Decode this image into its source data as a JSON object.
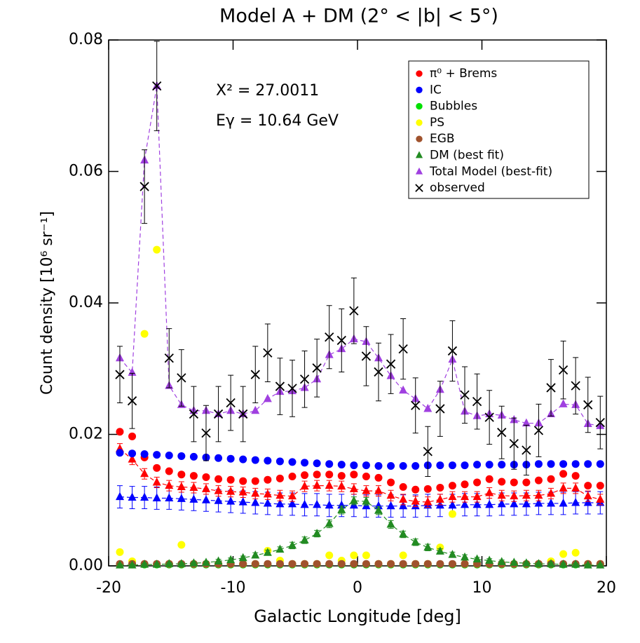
{
  "chart_data": {
    "type": "scatter",
    "title": "Model A + DM (2° < |b| < 5°)",
    "xlabel": "Galactic Longitude [deg]",
    "ylabel": "Count density  [10⁶ sr⁻¹]",
    "annotations": [
      "Χ² = 27.0011",
      "Eγ = 10.64 GeV"
    ],
    "xlim": [
      -20,
      20
    ],
    "xticks": [
      -20,
      -10,
      0,
      10,
      20
    ],
    "ylim": [
      0,
      0.08
    ],
    "yticks": [
      {
        "value": 0,
        "label": "0.00"
      },
      {
        "value": 0.02,
        "label": "0.02"
      },
      {
        "value": 0.04,
        "label": "0.04"
      },
      {
        "value": 0.06,
        "label": "0.06"
      },
      {
        "value": 0.08,
        "label": "0.08"
      }
    ],
    "legend": "upper right",
    "x": [
      -19.1,
      -18.11,
      -17.12,
      -16.13,
      -15.14,
      -14.15,
      -13.16,
      -12.17,
      -11.18,
      -10.19,
      -9.2,
      -8.21,
      -7.22,
      -6.23,
      -5.24,
      -4.25,
      -3.26,
      -2.27,
      -1.28,
      -0.29,
      0.7,
      1.69,
      2.68,
      3.67,
      4.66,
      5.65,
      6.64,
      7.63,
      8.62,
      9.61,
      10.6,
      11.59,
      12.58,
      13.57,
      14.56,
      15.55,
      16.54,
      17.53,
      18.52,
      19.51
    ],
    "series": [
      {
        "color": "#0000ff",
        "marker": "triangle",
        "line": "dashed",
        "values": [
          0.0105,
          0.0104,
          0.0104,
          0.0103,
          0.0103,
          0.0102,
          0.0101,
          0.01,
          0.0099,
          0.0098,
          0.0097,
          0.0096,
          0.0095,
          0.0094,
          0.0094,
          0.0093,
          0.0093,
          0.0092,
          0.0092,
          0.0092,
          0.0091,
          0.0091,
          0.0091,
          0.0091,
          0.0091,
          0.0092,
          0.0092,
          0.0092,
          0.0093,
          0.0093,
          0.0093,
          0.0094,
          0.0094,
          0.0094,
          0.0095,
          0.0095,
          0.0095,
          0.0096,
          0.0096,
          0.0096
        ],
        "errors": [
          0.0017,
          0.0017,
          0.0017,
          0.0017,
          0.0017,
          0.0017,
          0.0017,
          0.0017,
          0.0017,
          0.0017,
          0.0017,
          0.0017,
          0.0017,
          0.0017,
          0.0017,
          0.0017,
          0.0017,
          0.0017,
          0.0017,
          0.0017,
          0.0017,
          0.0017,
          0.0017,
          0.0017,
          0.0017,
          0.0017,
          0.0017,
          0.0017,
          0.0017,
          0.0017,
          0.0017,
          0.0017,
          0.0017,
          0.0017,
          0.0017,
          0.0017,
          0.0017,
          0.0017,
          0.0017,
          0.0017
        ]
      },
      {
        "color": "#ff0000",
        "marker": "triangle",
        "line": "dashed",
        "values": [
          0.0178,
          0.0162,
          0.014,
          0.0127,
          0.0122,
          0.012,
          0.0119,
          0.0117,
          0.0114,
          0.0113,
          0.0112,
          0.011,
          0.0109,
          0.0107,
          0.0106,
          0.0121,
          0.0122,
          0.0122,
          0.0121,
          0.0117,
          0.0114,
          0.0114,
          0.0107,
          0.0101,
          0.0098,
          0.0097,
          0.0101,
          0.0105,
          0.0105,
          0.0105,
          0.0111,
          0.0107,
          0.0106,
          0.0107,
          0.0107,
          0.011,
          0.0118,
          0.0118,
          0.0106,
          0.0101
        ],
        "errors": [
          0.0008,
          0.0008,
          0.0008,
          0.0008,
          0.0008,
          0.0008,
          0.0008,
          0.0008,
          0.0008,
          0.0008,
          0.0008,
          0.0008,
          0.0008,
          0.0008,
          0.0008,
          0.0008,
          0.0008,
          0.0008,
          0.0008,
          0.0008,
          0.0008,
          0.0008,
          0.0008,
          0.0008,
          0.0008,
          0.0008,
          0.0008,
          0.0008,
          0.0008,
          0.0008,
          0.0008,
          0.0008,
          0.0008,
          0.0008,
          0.0008,
          0.0008,
          0.0008,
          0.0008,
          0.0008,
          0.0008
        ]
      },
      {
        "name": "π⁰ + Brems",
        "color": "#ff0000",
        "marker": "circle",
        "values": [
          0.0204,
          0.0197,
          0.0165,
          0.0149,
          0.0144,
          0.0139,
          0.0137,
          0.0135,
          0.0132,
          0.0131,
          0.0129,
          0.0129,
          0.0131,
          0.0133,
          0.0136,
          0.0138,
          0.0139,
          0.0139,
          0.0137,
          0.0139,
          0.0136,
          0.0134,
          0.0127,
          0.012,
          0.0116,
          0.0117,
          0.0119,
          0.0122,
          0.0124,
          0.0127,
          0.0132,
          0.0128,
          0.0127,
          0.0127,
          0.013,
          0.0132,
          0.014,
          0.0137,
          0.0122,
          0.0122
        ]
      },
      {
        "name": "IC",
        "color": "#0000ff",
        "marker": "circle",
        "values": [
          0.0172,
          0.0171,
          0.017,
          0.0169,
          0.0168,
          0.0167,
          0.0166,
          0.0165,
          0.0164,
          0.0163,
          0.0162,
          0.0161,
          0.016,
          0.0159,
          0.0158,
          0.0157,
          0.0156,
          0.0155,
          0.0154,
          0.0153,
          0.0153,
          0.0152,
          0.0152,
          0.0152,
          0.0152,
          0.0153,
          0.0153,
          0.0153,
          0.0153,
          0.0154,
          0.0154,
          0.0154,
          0.0154,
          0.0154,
          0.0155,
          0.0155,
          0.0155,
          0.0155,
          0.0155,
          0.0155
        ]
      },
      {
        "name": "Bubbles",
        "color": "#00e000",
        "marker": "circle",
        "values": [
          0.0002,
          0.0002,
          0.0002,
          0.0002,
          0.0002,
          0.0002,
          0.0002,
          0.0002,
          0.0002,
          0.0002,
          0.0002,
          0.0002,
          0.0002,
          0.0002,
          0.0002,
          0.0002,
          0.0002,
          0.0002,
          0.0002,
          0.0002,
          0.0002,
          0.0002,
          0.0002,
          0.0002,
          0.0002,
          0.0002,
          0.0002,
          0.0002,
          0.0002,
          0.0002,
          0.0002,
          0.0002,
          0.0002,
          0.0002,
          0.0002,
          0.0002,
          0.0002,
          0.0002,
          0.0002,
          0.0002
        ]
      },
      {
        "name": "PS",
        "color": "#ffff00",
        "marker": "circle",
        "values": [
          0.0021,
          0.0007,
          0.0353,
          0.0481,
          0.0003,
          0.0032,
          0.0003,
          0.0003,
          0.0003,
          0.0003,
          0.0003,
          0.0003,
          0.0023,
          0.0008,
          0.0003,
          0.0003,
          0.0003,
          0.0016,
          0.0008,
          0.0016,
          0.0016,
          0.0003,
          0.0003,
          0.0016,
          0.0003,
          0.0003,
          0.0028,
          0.0079,
          0.0003,
          0.0003,
          0.0003,
          0.0003,
          0.0003,
          0.0003,
          0.0003,
          0.0007,
          0.0018,
          0.002,
          0.0003,
          0.0003
        ]
      },
      {
        "name": "EGB",
        "color": "#a0522d",
        "marker": "circle",
        "values": [
          0.0003,
          0.0003,
          0.0003,
          0.0003,
          0.0003,
          0.0003,
          0.0003,
          0.0003,
          0.0003,
          0.0003,
          0.0003,
          0.0003,
          0.0003,
          0.0003,
          0.0003,
          0.0003,
          0.0003,
          0.0003,
          0.0003,
          0.0003,
          0.0003,
          0.0003,
          0.0003,
          0.0003,
          0.0003,
          0.0003,
          0.0003,
          0.0003,
          0.0003,
          0.0003,
          0.0003,
          0.0003,
          0.0003,
          0.0003,
          0.0003,
          0.0003,
          0.0003,
          0.0003,
          0.0003,
          0.0003
        ]
      },
      {
        "name": "DM (best fit)",
        "color": "#228b22",
        "marker": "triangle",
        "line": "dashed",
        "values": [
          0.0001,
          0.0001,
          0.0002,
          0.0002,
          0.0003,
          0.0003,
          0.0004,
          0.0005,
          0.0007,
          0.0009,
          0.0012,
          0.0016,
          0.002,
          0.0025,
          0.0031,
          0.0039,
          0.0049,
          0.0064,
          0.0085,
          0.0099,
          0.0098,
          0.0084,
          0.0063,
          0.0048,
          0.0036,
          0.0028,
          0.0022,
          0.0017,
          0.0013,
          0.001,
          0.0008,
          0.0006,
          0.0005,
          0.0004,
          0.0003,
          0.0003,
          0.0002,
          0.0002,
          0.0001,
          0.0001
        ],
        "errors": [
          0.0002,
          0.0002,
          0.0002,
          0.0002,
          0.0002,
          0.0002,
          0.0002,
          0.0002,
          0.0003,
          0.0003,
          0.0003,
          0.0004,
          0.0004,
          0.0004,
          0.0005,
          0.0005,
          0.0005,
          0.0006,
          0.0006,
          0.0006,
          0.0006,
          0.0006,
          0.0006,
          0.0005,
          0.0005,
          0.0005,
          0.0004,
          0.0004,
          0.0004,
          0.0003,
          0.0003,
          0.0003,
          0.0002,
          0.0002,
          0.0002,
          0.0002,
          0.0002,
          0.0002,
          0.0002,
          0.0002
        ]
      },
      {
        "name": "Total Model (best-fit)",
        "color": "#a040e0",
        "marker": "triangle",
        "line": "dashed",
        "values": [
          0.0316,
          0.0294,
          0.0617,
          0.073,
          0.0274,
          0.0245,
          0.0236,
          0.0236,
          0.0231,
          0.0236,
          0.0231,
          0.0236,
          0.0254,
          0.0265,
          0.0266,
          0.0271,
          0.0284,
          0.0321,
          0.033,
          0.0345,
          0.0341,
          0.0316,
          0.0289,
          0.0267,
          0.0254,
          0.0239,
          0.0268,
          0.0314,
          0.0235,
          0.0228,
          0.0231,
          0.0229,
          0.0222,
          0.0217,
          0.0217,
          0.0231,
          0.0246,
          0.0245,
          0.0216,
          0.0213
        ]
      },
      {
        "name": "observed",
        "color": "#000000",
        "marker": "x",
        "values": [
          0.0291,
          0.0251,
          0.0577,
          0.073,
          0.0316,
          0.0286,
          0.0231,
          0.0202,
          0.0231,
          0.0248,
          0.0231,
          0.0291,
          0.0324,
          0.0273,
          0.027,
          0.0284,
          0.0301,
          0.0348,
          0.0343,
          0.0388,
          0.0319,
          0.0295,
          0.0307,
          0.033,
          0.0244,
          0.0174,
          0.0239,
          0.0327,
          0.026,
          0.025,
          0.0226,
          0.0203,
          0.0186,
          0.0176,
          0.0206,
          0.0271,
          0.0298,
          0.0274,
          0.0245,
          0.0218
        ],
        "errors": [
          0.0043,
          0.0042,
          0.0056,
          0.0068,
          0.0045,
          0.0043,
          0.0042,
          0.0042,
          0.0042,
          0.0042,
          0.0042,
          0.0043,
          0.0044,
          0.0043,
          0.0043,
          0.0043,
          0.0044,
          0.0048,
          0.0048,
          0.005,
          0.0045,
          0.0044,
          0.0045,
          0.0046,
          0.0042,
          0.0038,
          0.0042,
          0.0046,
          0.0043,
          0.0042,
          0.0041,
          0.004,
          0.0039,
          0.0038,
          0.004,
          0.0043,
          0.0044,
          0.0043,
          0.0042,
          0.004
        ]
      }
    ]
  }
}
